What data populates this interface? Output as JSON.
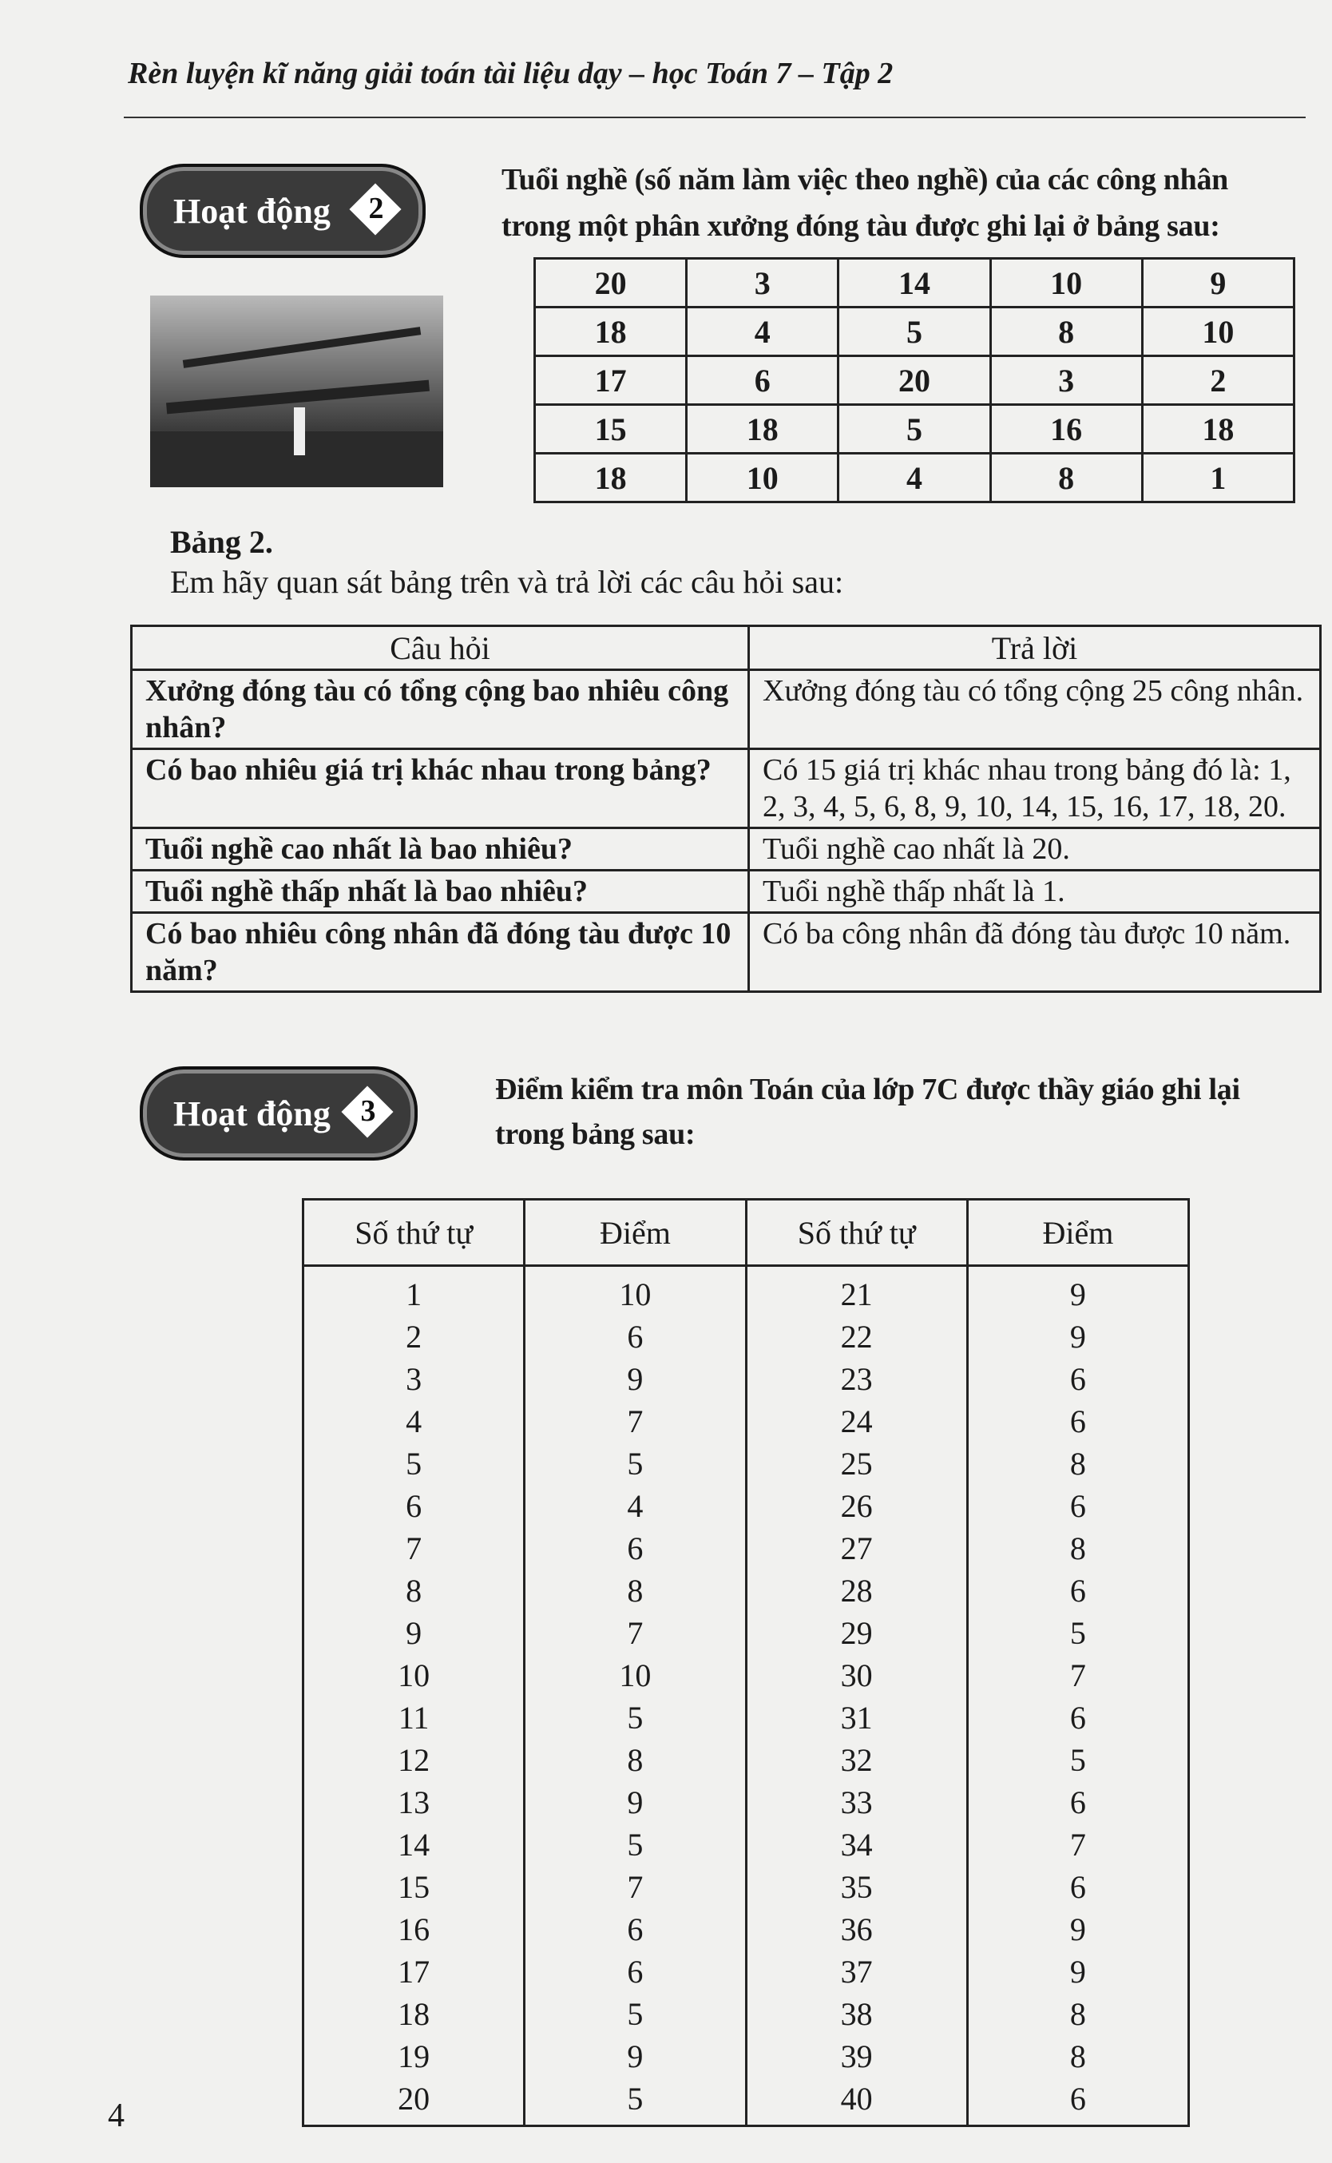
{
  "header": {
    "title": "Rèn luyện kĩ năng giải toán tài liệu dạy – học Toán 7 – Tập 2"
  },
  "activity2": {
    "badge_label": "Hoạt động",
    "badge_number": "2",
    "intro_line1": "Tuổi nghề (số năm làm việc theo nghề) của các công nhân",
    "intro_line2": "trong một phân xưởng đóng tàu được ghi lại ở bảng sau:",
    "table": [
      [
        "20",
        "3",
        "14",
        "10",
        "9"
      ],
      [
        "18",
        "4",
        "5",
        "8",
        "10"
      ],
      [
        "17",
        "6",
        "20",
        "3",
        "2"
      ],
      [
        "15",
        "18",
        "5",
        "16",
        "18"
      ],
      [
        "18",
        "10",
        "4",
        "8",
        "1"
      ]
    ],
    "caption": "Bảng 2.",
    "instruction": "Em hãy quan sát bảng trên và trả lời các câu hỏi sau:",
    "qa_headers": [
      "Câu hỏi",
      "Trả lời"
    ],
    "qa": [
      {
        "q": "Xưởng đóng tàu có tổng cộng bao nhiêu công nhân?",
        "a": "Xưởng đóng tàu có tổng cộng 25 công nhân."
      },
      {
        "q": "Có bao nhiêu giá trị khác nhau trong bảng?",
        "a": "Có 15 giá trị khác nhau trong bảng đó là: 1, 2, 3, 4, 5, 6, 8, 9, 10, 14, 15, 16, 17, 18, 20."
      },
      {
        "q": "Tuổi nghề cao nhất là bao nhiêu?",
        "a": "Tuổi nghề cao nhất là 20."
      },
      {
        "q": "Tuổi nghề thấp nhất là bao nhiêu?",
        "a": "Tuổi nghề thấp nhất là 1."
      },
      {
        "q": "Có bao nhiêu công nhân đã đóng tàu được 10 năm?",
        "a": "Có ba công nhân đã đóng tàu được 10 năm."
      }
    ]
  },
  "activity3": {
    "badge_label": "Hoạt động",
    "badge_number": "3",
    "intro_line1": "Điểm kiểm tra môn Toán của lớp 7C được thầy giáo ghi lại",
    "intro_line2": "trong bảng sau:",
    "headers": [
      "Số thứ tự",
      "Điểm",
      "Số thứ tự",
      "Điểm"
    ],
    "left": {
      "ids": [
        "1",
        "2",
        "3",
        "4",
        "5",
        "6",
        "7",
        "8",
        "9",
        "10",
        "11",
        "12",
        "13",
        "14",
        "15",
        "16",
        "17",
        "18",
        "19",
        "20"
      ],
      "scores": [
        "10",
        "6",
        "9",
        "7",
        "5",
        "4",
        "6",
        "8",
        "7",
        "10",
        "5",
        "8",
        "9",
        "5",
        "7",
        "6",
        "6",
        "5",
        "9",
        "5"
      ]
    },
    "right": {
      "ids": [
        "21",
        "22",
        "23",
        "24",
        "25",
        "26",
        "27",
        "28",
        "29",
        "30",
        "31",
        "32",
        "33",
        "34",
        "35",
        "36",
        "37",
        "38",
        "39",
        "40"
      ],
      "scores": [
        "9",
        "9",
        "6",
        "6",
        "8",
        "6",
        "8",
        "6",
        "5",
        "7",
        "6",
        "5",
        "6",
        "7",
        "6",
        "9",
        "9",
        "8",
        "8",
        "6"
      ]
    }
  },
  "page_number": "4"
}
